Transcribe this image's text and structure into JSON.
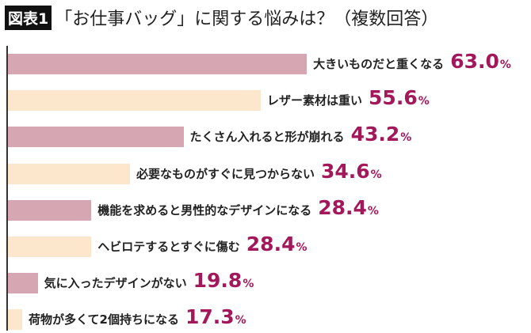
{
  "title": {
    "badge": "図表1",
    "text": "「お仕事バッグ」に関する悩みは？（複数回答）"
  },
  "colors": {
    "bar_a": "#d6a7b2",
    "bar_b": "#fce6cc",
    "value": "#a3185a"
  },
  "chart_data": {
    "type": "bar",
    "orientation": "horizontal",
    "categories": [
      "大きいものだと重くなる",
      "レザー素材は重い",
      "たくさん入れると形が崩れる",
      "必要なものがすぐに見つからない",
      "機能を求めると男性的なデザインになる",
      "ヘビロテするとすぐに傷む",
      "気に入ったデザインがない",
      "荷物が多くて2個持ちになる"
    ],
    "values": [
      63.0,
      55.6,
      43.2,
      34.6,
      28.4,
      28.4,
      19.8,
      17.3
    ],
    "value_labels": [
      "63.0",
      "55.6",
      "43.2",
      "34.6",
      "28.4",
      "28.4",
      "19.8",
      "17.3"
    ],
    "unit": "%",
    "title": "「お仕事バッグ」に関する悩みは？（複数回答）",
    "grid": false
  }
}
